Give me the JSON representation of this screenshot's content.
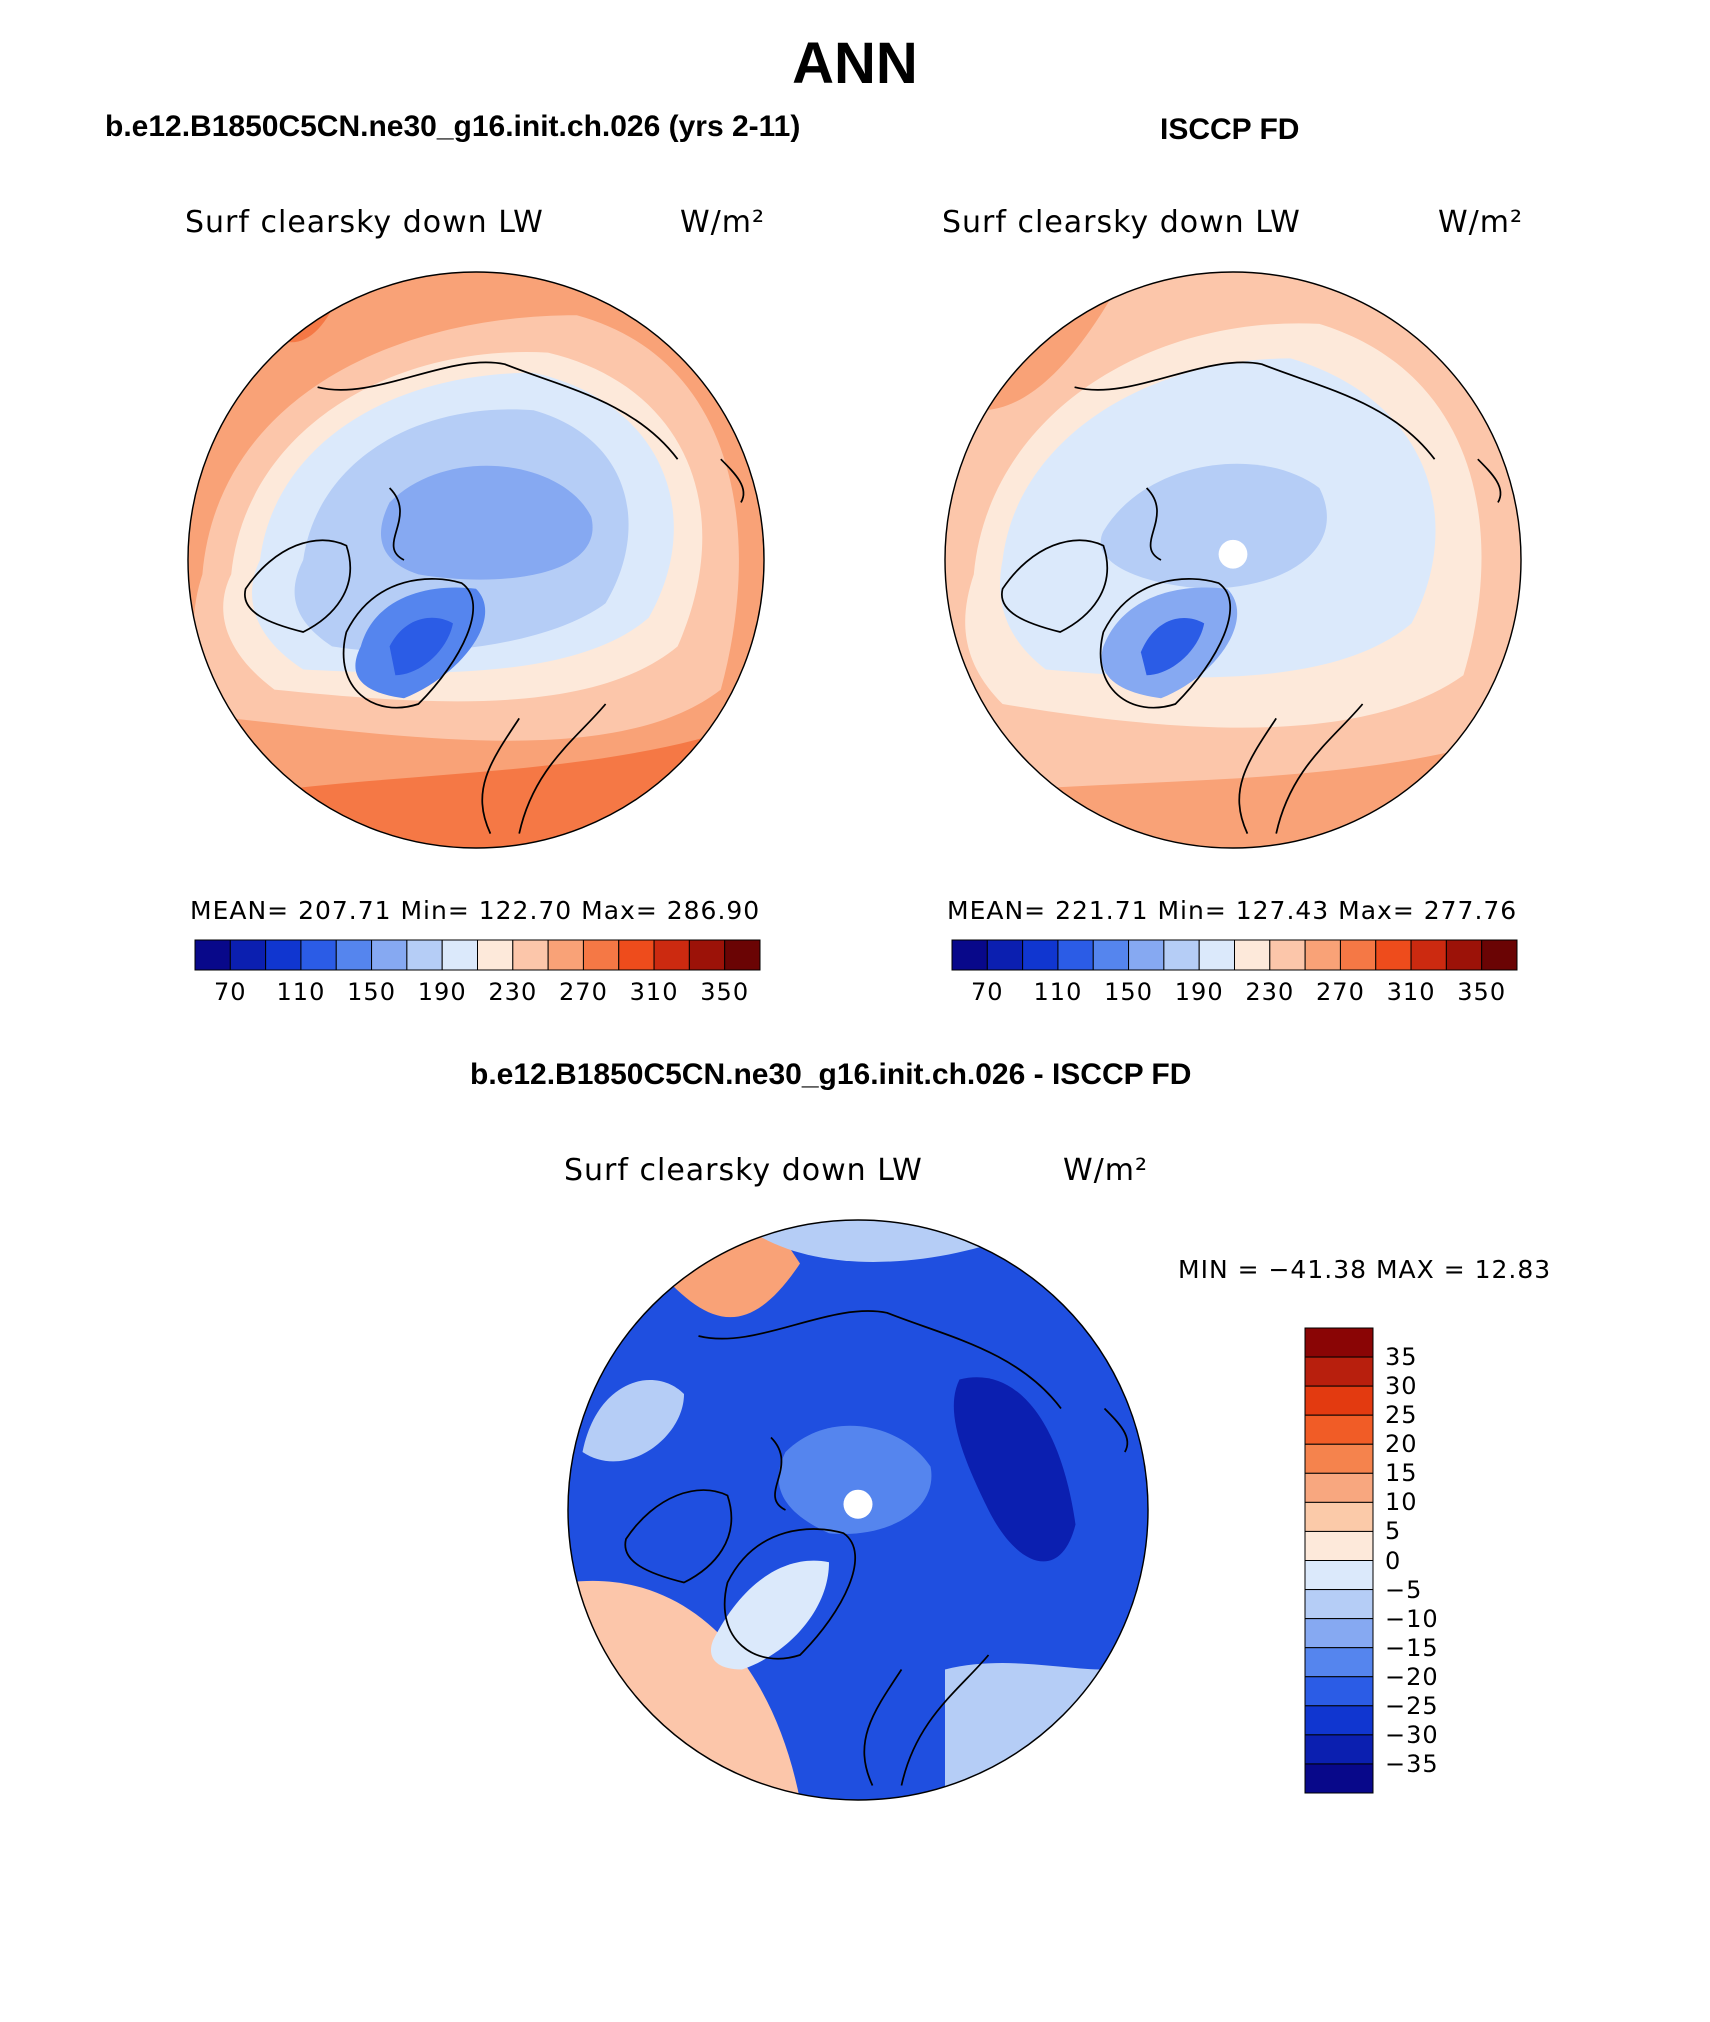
{
  "figure_title": "ANN",
  "panels": [
    {
      "title": "b.e12.B1850C5CN.ne30_g16.init.ch.026 (yrs 2-11)",
      "variable": "Surf clearsky down LW",
      "units": "W/m²",
      "stats": "MEAN= 207.71   Min= 122.70   Max= 286.90",
      "stats_values": {
        "mean": 207.71,
        "min": 122.7,
        "max": 286.9
      }
    },
    {
      "title": "ISCCP FD",
      "variable": "Surf clearsky down LW",
      "units": "W/m²",
      "stats": "MEAN= 221.71   Min= 127.43   Max= 277.76",
      "stats_values": {
        "mean": 221.71,
        "min": 127.43,
        "max": 277.76
      }
    },
    {
      "title": "b.e12.B1850C5CN.ne30_g16.init.ch.026 - ISCCP FD",
      "variable": "Surf clearsky down LW",
      "units": "W/m²",
      "stats": "MIN = −41.38 MAX =   12.83",
      "stats_values": {
        "min": -41.38,
        "max": 12.83
      }
    }
  ],
  "colorbar_abs": {
    "colors": [
      "#08088a",
      "#0b1fb0",
      "#1036d0",
      "#2b5ce6",
      "#5585ee",
      "#86a9f2",
      "#b5cdf6",
      "#dbe9fb",
      "#fde9da",
      "#fcc6aa",
      "#f9a277",
      "#f57845",
      "#ee4c1c",
      "#cc2a10",
      "#9c1208",
      "#6a0404"
    ],
    "labels": [
      "70",
      "110",
      "150",
      "190",
      "230",
      "270",
      "310",
      "350"
    ]
  },
  "colorbar_diff": {
    "colors_top_to_bottom": [
      "#8a0505",
      "#b81f0d",
      "#e33a10",
      "#f15c26",
      "#f5834d",
      "#f8a77f",
      "#fbcaa9",
      "#fde9da",
      "#dbe9fb",
      "#b5cdf6",
      "#86a9f2",
      "#5585ee",
      "#2b5ce6",
      "#1036d0",
      "#0b1fb0",
      "#08088a"
    ],
    "labels": [
      "35",
      "30",
      "25",
      "20",
      "15",
      "10",
      "5",
      "0",
      "−5",
      "−10",
      "−15",
      "−20",
      "−25",
      "−30",
      "−35"
    ]
  },
  "map_colors": {
    "warm_edge": "#f57845",
    "warm_mid": "#f9a277",
    "warm_light": "#fcc6aa",
    "pale_warm": "#fde9da",
    "pale_cool": "#dbe9fb",
    "cool_light": "#b5cdf6",
    "cool_mid": "#86a9f2",
    "cool_deep": "#5585ee",
    "cool_core": "#2b5ce6",
    "diff_base": "#1f4fe0",
    "diff_deep": "#1036d0",
    "diff_dark": "#0b1fb0"
  }
}
